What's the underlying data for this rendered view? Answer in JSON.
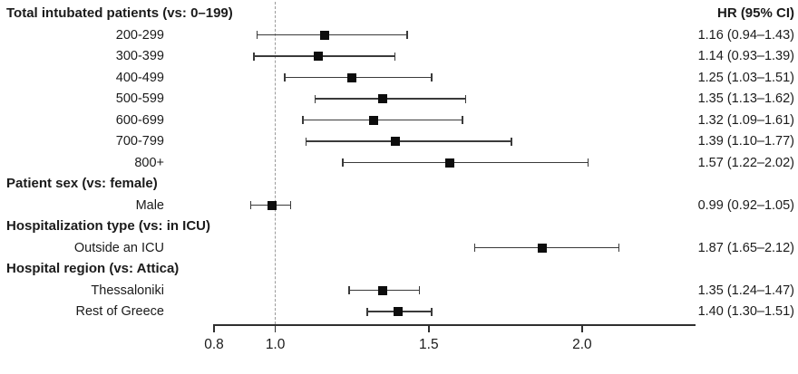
{
  "chart_data": {
    "type": "scatter",
    "variant": "forest-plot",
    "title": "",
    "xlabel": "",
    "ylabel": "",
    "value_column_header": "HR (95% CI)",
    "xlim": [
      0.8,
      2.37
    ],
    "xticks": [
      0.8,
      1.0,
      1.5,
      2.0
    ],
    "xtick_labels": [
      "0.8",
      "1.0",
      "1.5",
      "2.0"
    ],
    "reference_line": 1.0,
    "grid": false,
    "legend": "none",
    "rows": [
      {
        "type": "group",
        "label": "Total intubated patients (vs: 0–199)"
      },
      {
        "type": "item",
        "label": "200-299",
        "hr": 1.16,
        "ci_low": 0.94,
        "ci_high": 1.43,
        "display": "1.16 (0.94–1.43)"
      },
      {
        "type": "item",
        "label": "300-399",
        "hr": 1.14,
        "ci_low": 0.93,
        "ci_high": 1.39,
        "display": "1.14 (0.93–1.39)"
      },
      {
        "type": "item",
        "label": "400-499",
        "hr": 1.25,
        "ci_low": 1.03,
        "ci_high": 1.51,
        "display": "1.25 (1.03–1.51)"
      },
      {
        "type": "item",
        "label": "500-599",
        "hr": 1.35,
        "ci_low": 1.13,
        "ci_high": 1.62,
        "display": "1.35 (1.13–1.62)"
      },
      {
        "type": "item",
        "label": "600-699",
        "hr": 1.32,
        "ci_low": 1.09,
        "ci_high": 1.61,
        "display": "1.32 (1.09–1.61)"
      },
      {
        "type": "item",
        "label": "700-799",
        "hr": 1.39,
        "ci_low": 1.1,
        "ci_high": 1.77,
        "display": "1.39 (1.10–1.77)"
      },
      {
        "type": "item",
        "label": "800+",
        "hr": 1.57,
        "ci_low": 1.22,
        "ci_high": 2.02,
        "display": "1.57 (1.22–2.02)"
      },
      {
        "type": "group",
        "label": "Patient sex (vs: female)"
      },
      {
        "type": "item",
        "label": "Male",
        "hr": 0.99,
        "ci_low": 0.92,
        "ci_high": 1.05,
        "display": "0.99 (0.92–1.05)"
      },
      {
        "type": "group",
        "label": "Hospitalization type (vs: in ICU)"
      },
      {
        "type": "item",
        "label": "Outside an ICU",
        "hr": 1.87,
        "ci_low": 1.65,
        "ci_high": 2.12,
        "display": "1.87 (1.65–2.12)"
      },
      {
        "type": "group",
        "label": "Hospital region (vs: Attica)"
      },
      {
        "type": "item",
        "label": "Thessaloniki",
        "hr": 1.35,
        "ci_low": 1.24,
        "ci_high": 1.47,
        "display": "1.35 (1.24–1.47)"
      },
      {
        "type": "item",
        "label": "Rest of Greece",
        "hr": 1.4,
        "ci_low": 1.3,
        "ci_high": 1.51,
        "display": "1.40 (1.30–1.51)"
      }
    ],
    "colors": {
      "marker": "#0d0d0d",
      "ci_line": "#3a3a3a",
      "reference_line": "#9b9b9b",
      "axis": "#2f2f2f",
      "text": "#1b1b1b"
    }
  }
}
